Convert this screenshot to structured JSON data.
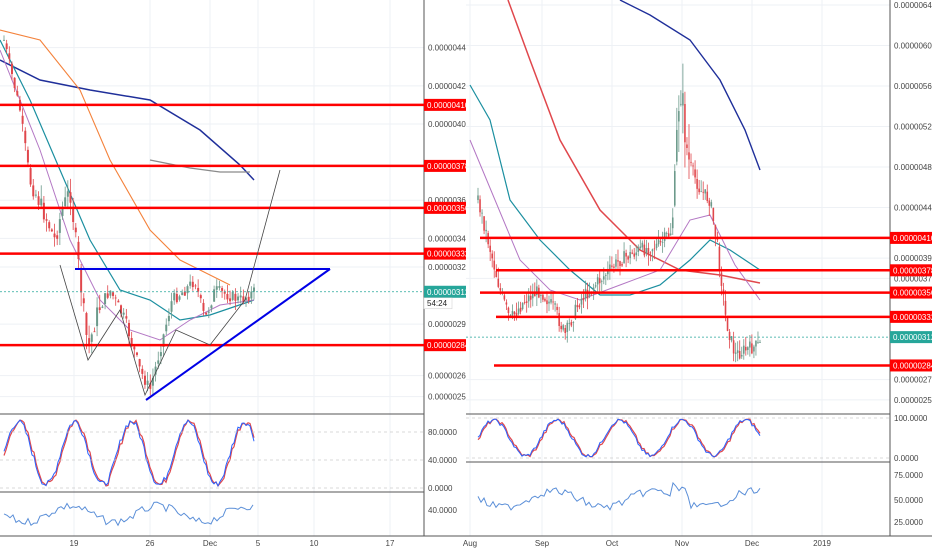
{
  "colors": {
    "up": "#6c9a8b",
    "down": "#e0474c",
    "support_resistance": "#ff0000",
    "trendline": "#0000e6",
    "ma_blue": "#1f2f9a",
    "ma_orange": "#f4823b",
    "ma_teal": "#1b8fa0",
    "ma_purple": "#b377c4",
    "ma_gray": "#8a8a8a",
    "stoch_k": "#2962ff",
    "stoch_d": "#e0474c",
    "rsi": "#5b8fd8",
    "current_price_bg": "#26a69a"
  },
  "chart_data": [
    {
      "type": "candlestick",
      "panel": "left",
      "price_axis_ticks": [
        "0.00000440",
        "0.00000420",
        "0.00000400",
        "0.00000360",
        "0.00000340",
        "0.00000325",
        "0.00000295",
        "0.00000268",
        "0.00000257"
      ],
      "ylim": [
        2.5e-06,
        4.65e-06
      ],
      "x_tick_labels": [
        "19",
        "26",
        "Dec",
        "5",
        "10",
        "17"
      ],
      "price_levels": [
        {
          "label": "0.00000410",
          "value": 4.1e-06
        },
        {
          "label": "0.00000378",
          "value": 3.78e-06
        },
        {
          "label": "0.00000356",
          "value": 3.56e-06
        },
        {
          "label": "0.00000332",
          "value": 3.32e-06
        },
        {
          "label": "0.00000284",
          "value": 2.84e-06
        }
      ],
      "current_price": {
        "label": "0.00000312",
        "value": 3.12e-06,
        "countdown": "54:24"
      },
      "patterns": [
        "ascending triangle: horizontal resistance near 0.00000324, rising support from 0.00000257"
      ],
      "indicators": {
        "stoch_axis_labels": [
          "80.0000",
          "40.0000",
          "0.0000"
        ],
        "rsi_axis_labels": [
          "40.0000"
        ]
      }
    },
    {
      "type": "candlestick",
      "panel": "right",
      "price_axis_ticks": [
        "0.00000640",
        "0.00000600",
        "0.00000560",
        "0.00000520",
        "0.00000480",
        "0.00000440",
        "0.00000390",
        "0.00000370",
        "0.00000270",
        "0.00000250"
      ],
      "ylim": [
        2.4e-06,
        6.45e-06
      ],
      "x_tick_labels": [
        "Aug",
        "Sep",
        "Oct",
        "Nov",
        "Dec",
        "2019"
      ],
      "price_levels": [
        {
          "label": "0.00000410",
          "value": 4.1e-06
        },
        {
          "label": "0.00000378",
          "value": 3.78e-06
        },
        {
          "label": "0.00000356",
          "value": 3.56e-06
        },
        {
          "label": "0.00000332",
          "value": 3.32e-06
        },
        {
          "label": "0.00000284",
          "value": 2.84e-06
        }
      ],
      "current_price": {
        "label": "0.00000312",
        "value": 3.12e-06
      },
      "indicators": {
        "stoch_axis_labels": [
          "100.0000",
          "0.0000"
        ],
        "rsi_axis_labels": [
          "75.0000",
          "50.0000",
          "25.0000"
        ]
      }
    }
  ]
}
